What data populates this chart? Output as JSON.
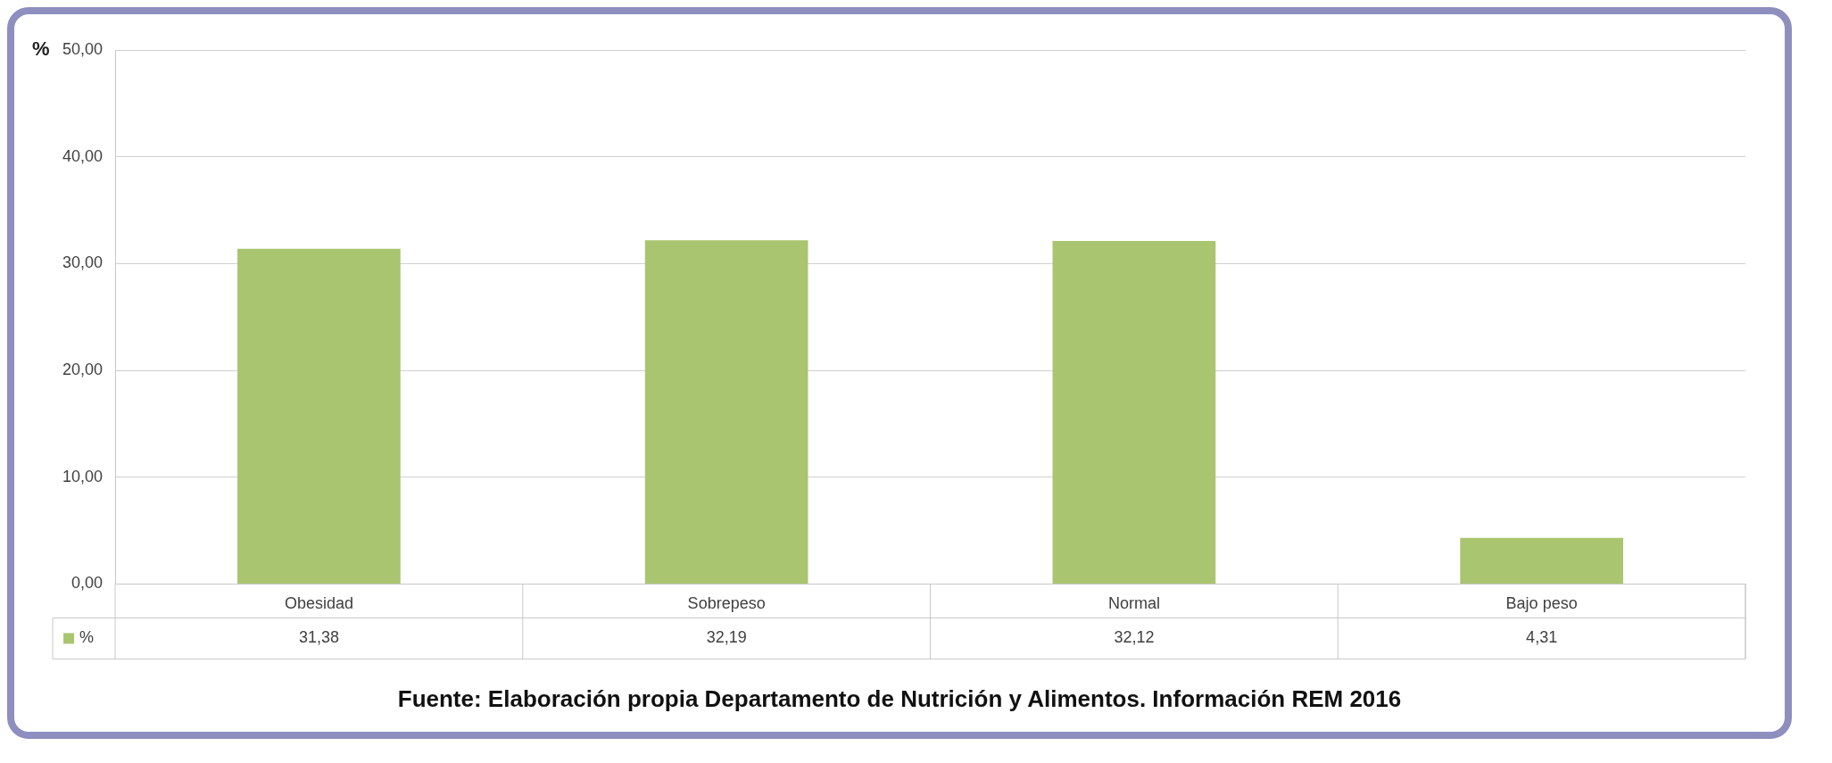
{
  "chart_data": {
    "type": "bar",
    "ylabel": "%",
    "categories": [
      "Obesidad",
      "Sobrepeso",
      "Normal",
      "Bajo peso"
    ],
    "series": [
      {
        "name": "%",
        "color": "#a9c56f",
        "values": [
          31.38,
          32.19,
          32.12,
          4.31
        ],
        "value_labels": [
          "31,38",
          "32,19",
          "32,12",
          "4,31"
        ]
      }
    ],
    "ylim": [
      0,
      50
    ],
    "yticks": [
      {
        "value": 0,
        "label": "0,00"
      },
      {
        "value": 10,
        "label": "10,00"
      },
      {
        "value": 20,
        "label": "20,00"
      },
      {
        "value": 30,
        "label": "30,00"
      },
      {
        "value": 40,
        "label": "40,00"
      },
      {
        "value": 50,
        "label": "50,00"
      }
    ],
    "grid": "y",
    "annotations": [
      "Fuente: Elaboración propia Departamento de Nutrición y Alimentos. Información REM 2016"
    ]
  }
}
